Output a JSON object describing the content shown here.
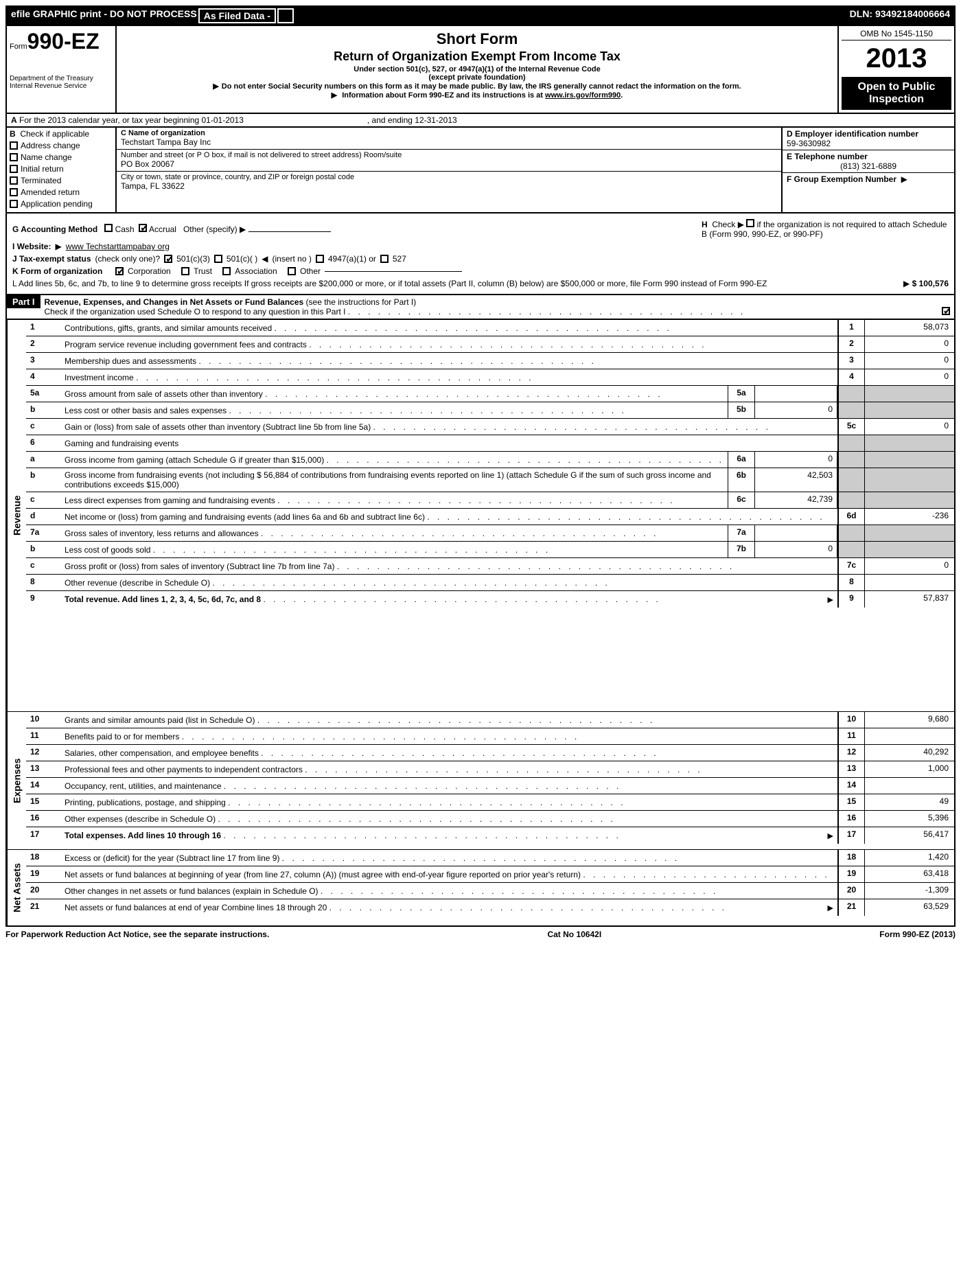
{
  "topbar": {
    "left1": "efile GRAPHIC print - DO NOT PROCESS",
    "left2": "As Filed Data -",
    "right": "DLN: 93492184006664"
  },
  "header": {
    "form_prefix": "Form",
    "form_number": "990-EZ",
    "dept1": "Department of the Treasury",
    "dept2": "Internal Revenue Service",
    "title1": "Short Form",
    "title2": "Return of Organization Exempt From Income Tax",
    "subtitle1": "Under section 501(c), 527, or 4947(a)(1) of the Internal Revenue Code",
    "subtitle2": "(except private foundation)",
    "bullet1": "Do not enter Social Security numbers on this form as it may be made public. By law, the IRS generally cannot redact the information on the form.",
    "bullet2_pre": "Information about Form 990-EZ and its instructions is at ",
    "bullet2_link": "www.irs.gov/form990",
    "omb": "OMB No 1545-1150",
    "year": "2013",
    "open1": "Open to Public",
    "open2": "Inspection"
  },
  "sectionA": {
    "line_a": "For the 2013 calendar year, or tax year beginning 01-01-2013",
    "line_a_end": ", and ending 12-31-2013",
    "b_label": "Check if applicable",
    "b_items": [
      "Address change",
      "Name change",
      "Initial return",
      "Terminated",
      "Amended return",
      "Application pending"
    ],
    "c_label": "C Name of organization",
    "c_name": "Techstart Tampa Bay Inc",
    "c_street_label": "Number and street (or P  O  box, if mail is not delivered to street address) Room/suite",
    "c_street": "PO Box 20067",
    "c_city_label": "City or town, state or province, country, and ZIP or foreign postal code",
    "c_city": "Tampa, FL  33622",
    "d_label": "D Employer identification number",
    "d_val": "59-3630982",
    "e_label": "E Telephone number",
    "e_val": "(813) 321-6889",
    "f_label": "F Group Exemption Number"
  },
  "lines": {
    "g_label": "G Accounting Method",
    "g_cash": "Cash",
    "g_accrual": "Accrual",
    "g_other": "Other (specify)",
    "h_label": "Check",
    "h_text": "if the organization is not required to attach Schedule B (Form 990, 990-EZ, or 990-PF)",
    "i_label": "I Website:",
    "i_val": "www Techstarttampabay org",
    "j_label": "J Tax-exempt status",
    "j_paren": "(check only one)?",
    "j_501c3": "501(c)(3)",
    "j_501c": "501(c)(  )",
    "j_insert": "(insert no )",
    "j_4947": "4947(a)(1) or",
    "j_527": "527",
    "k_label": "K Form of organization",
    "k_corp": "Corporation",
    "k_trust": "Trust",
    "k_assoc": "Association",
    "k_other": "Other",
    "l_text": "L Add lines 5b, 6c, and 7b, to line 9 to determine gross receipts  If gross receipts are $200,000 or more, or if total assets (Part II, column (B) below) are $500,000 or more, file Form 990 instead of Form 990-EZ",
    "l_amount": "$ 100,576"
  },
  "part1": {
    "label": "Part I",
    "title": "Revenue, Expenses, and Changes in Net Assets or Fund Balances",
    "title_paren": "(see the instructions for Part I)",
    "check_text": "Check if the organization used Schedule O to respond to any question in this Part I"
  },
  "sections": {
    "revenue": "Revenue",
    "expenses": "Expenses",
    "netassets": "Net Assets"
  },
  "rows": [
    {
      "n": "1",
      "desc": "Contributions, gifts, grants, and similar amounts received",
      "ln": "1",
      "amt": "58,073"
    },
    {
      "n": "2",
      "desc": "Program service revenue including government fees and contracts",
      "ln": "2",
      "amt": "0"
    },
    {
      "n": "3",
      "desc": "Membership dues and assessments",
      "ln": "3",
      "amt": "0"
    },
    {
      "n": "4",
      "desc": "Investment income",
      "ln": "4",
      "amt": "0"
    },
    {
      "n": "5a",
      "desc": "Gross amount from sale of assets other than inventory",
      "sub": "5a",
      "subval": ""
    },
    {
      "n": "b",
      "desc": "Less  cost or other basis and sales expenses",
      "sub": "5b",
      "subval": "0"
    },
    {
      "n": "c",
      "desc": "Gain or (loss) from sale of assets other than inventory (Subtract line 5b from line 5a)",
      "ln": "5c",
      "amt": "0"
    },
    {
      "n": "6",
      "desc": "Gaming and fundraising events"
    },
    {
      "n": "a",
      "desc": "Gross income from gaming (attach Schedule G if greater than $15,000)",
      "sub": "6a",
      "subval": "0"
    },
    {
      "n": "b",
      "desc": "Gross income from fundraising events (not including $ 56,884 of contributions from fundraising events reported on line 1) (attach Schedule G if the sum of such gross income and contributions exceeds $15,000)",
      "sub": "6b",
      "subval": "42,503"
    },
    {
      "n": "c",
      "desc": "Less  direct expenses from gaming and fundraising events",
      "sub": "6c",
      "subval": "42,739"
    },
    {
      "n": "d",
      "desc": "Net income or (loss) from gaming and fundraising events (add lines 6a and 6b and subtract line 6c)",
      "ln": "6d",
      "amt": "-236"
    },
    {
      "n": "7a",
      "desc": "Gross sales of inventory, less returns and allowances",
      "sub": "7a",
      "subval": ""
    },
    {
      "n": "b",
      "desc": "Less  cost of goods sold",
      "sub": "7b",
      "subval": "0"
    },
    {
      "n": "c",
      "desc": "Gross profit or (loss) from sales of inventory (Subtract line 7b from line 7a)",
      "ln": "7c",
      "amt": "0"
    },
    {
      "n": "8",
      "desc": "Other revenue (describe in Schedule O)",
      "ln": "8",
      "amt": ""
    },
    {
      "n": "9",
      "desc": "Total revenue. Add lines 1, 2, 3, 4, 5c, 6d, 7c, and 8",
      "ln": "9",
      "amt": "57,837",
      "bold": true,
      "arrow": true
    },
    {
      "n": "10",
      "desc": "Grants and similar amounts paid (list in Schedule O)",
      "ln": "10",
      "amt": "9,680"
    },
    {
      "n": "11",
      "desc": "Benefits paid to or for members",
      "ln": "11",
      "amt": ""
    },
    {
      "n": "12",
      "desc": "Salaries, other compensation, and employee benefits",
      "ln": "12",
      "amt": "40,292"
    },
    {
      "n": "13",
      "desc": "Professional fees and other payments to independent contractors",
      "ln": "13",
      "amt": "1,000"
    },
    {
      "n": "14",
      "desc": "Occupancy, rent, utilities, and maintenance",
      "ln": "14",
      "amt": ""
    },
    {
      "n": "15",
      "desc": "Printing, publications, postage, and shipping",
      "ln": "15",
      "amt": "49"
    },
    {
      "n": "16",
      "desc": "Other expenses (describe in Schedule O)",
      "ln": "16",
      "amt": "5,396"
    },
    {
      "n": "17",
      "desc": "Total expenses. Add lines 10 through 16",
      "ln": "17",
      "amt": "56,417",
      "bold": true,
      "arrow": true
    },
    {
      "n": "18",
      "desc": "Excess or (deficit) for the year (Subtract line 17 from line 9)",
      "ln": "18",
      "amt": "1,420"
    },
    {
      "n": "19",
      "desc": "Net assets or fund balances at beginning of year (from line 27, column (A)) (must agree with end-of-year figure reported on prior year's return)",
      "ln": "19",
      "amt": "63,418"
    },
    {
      "n": "20",
      "desc": "Other changes in net assets or fund balances (explain in Schedule O)",
      "ln": "20",
      "amt": "-1,309"
    },
    {
      "n": "21",
      "desc": "Net assets or fund balances at end of year  Combine lines 18 through 20",
      "ln": "21",
      "amt": "63,529",
      "arrow": true
    }
  ],
  "footer": {
    "left": "For Paperwork Reduction Act Notice, see the separate instructions.",
    "mid": "Cat  No  10642I",
    "right": "Form 990-EZ (2013)"
  }
}
